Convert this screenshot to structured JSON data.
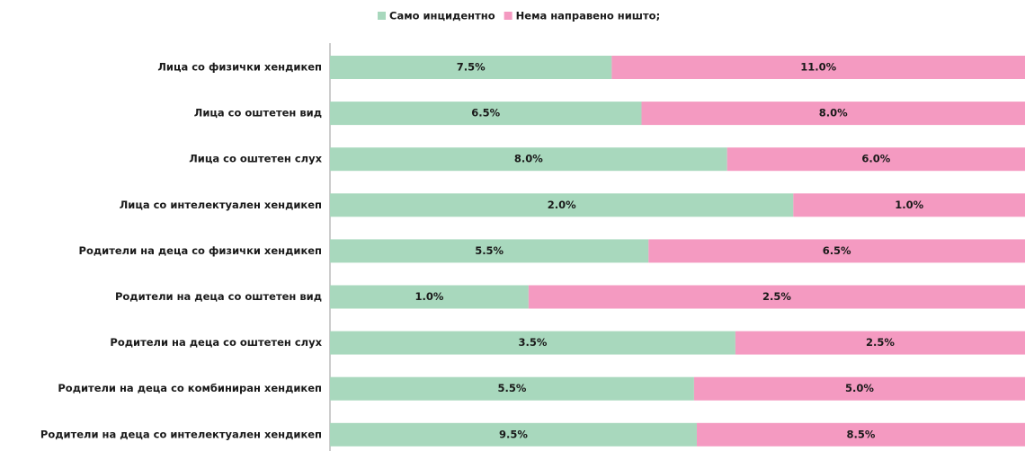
{
  "chart_data": {
    "type": "bar",
    "orientation": "horizontal",
    "stacking": "percent",
    "categories": [
      "Лица со физички хендикеп",
      "Лица со оштетен вид",
      "Лица со оштетен слух",
      "Лица со интелектуален хендикеп",
      "Родители на деца со физички хендикеп",
      "Родители на деца со оштетен вид",
      "Родители на деца со оштетен слух",
      "Родители на деца со комбиниран хендикеп",
      "Родители на деца со интелектуален хендикеп"
    ],
    "series": [
      {
        "name": "Само инцидентно",
        "color": "#a8d8bd",
        "values": [
          7.5,
          6.5,
          8.0,
          2.0,
          5.5,
          1.0,
          3.5,
          5.5,
          9.5
        ],
        "value_labels": [
          "7.5%",
          "6.5%",
          "8.0%",
          "2.0%",
          "5.5%",
          "1.0%",
          "3.5%",
          "5.5%",
          "9.5%"
        ]
      },
      {
        "name": "Нема направено ништо;",
        "color": "#f49ac1",
        "values": [
          11.0,
          8.0,
          6.0,
          1.0,
          6.5,
          2.5,
          2.5,
          5.0,
          8.5
        ],
        "value_labels": [
          "11.0%",
          "8.0%",
          "6.0%",
          "1.0%",
          "6.5%",
          "2.5%",
          "2.5%",
          "5.0%",
          "8.5%"
        ]
      }
    ],
    "legend": "top"
  }
}
